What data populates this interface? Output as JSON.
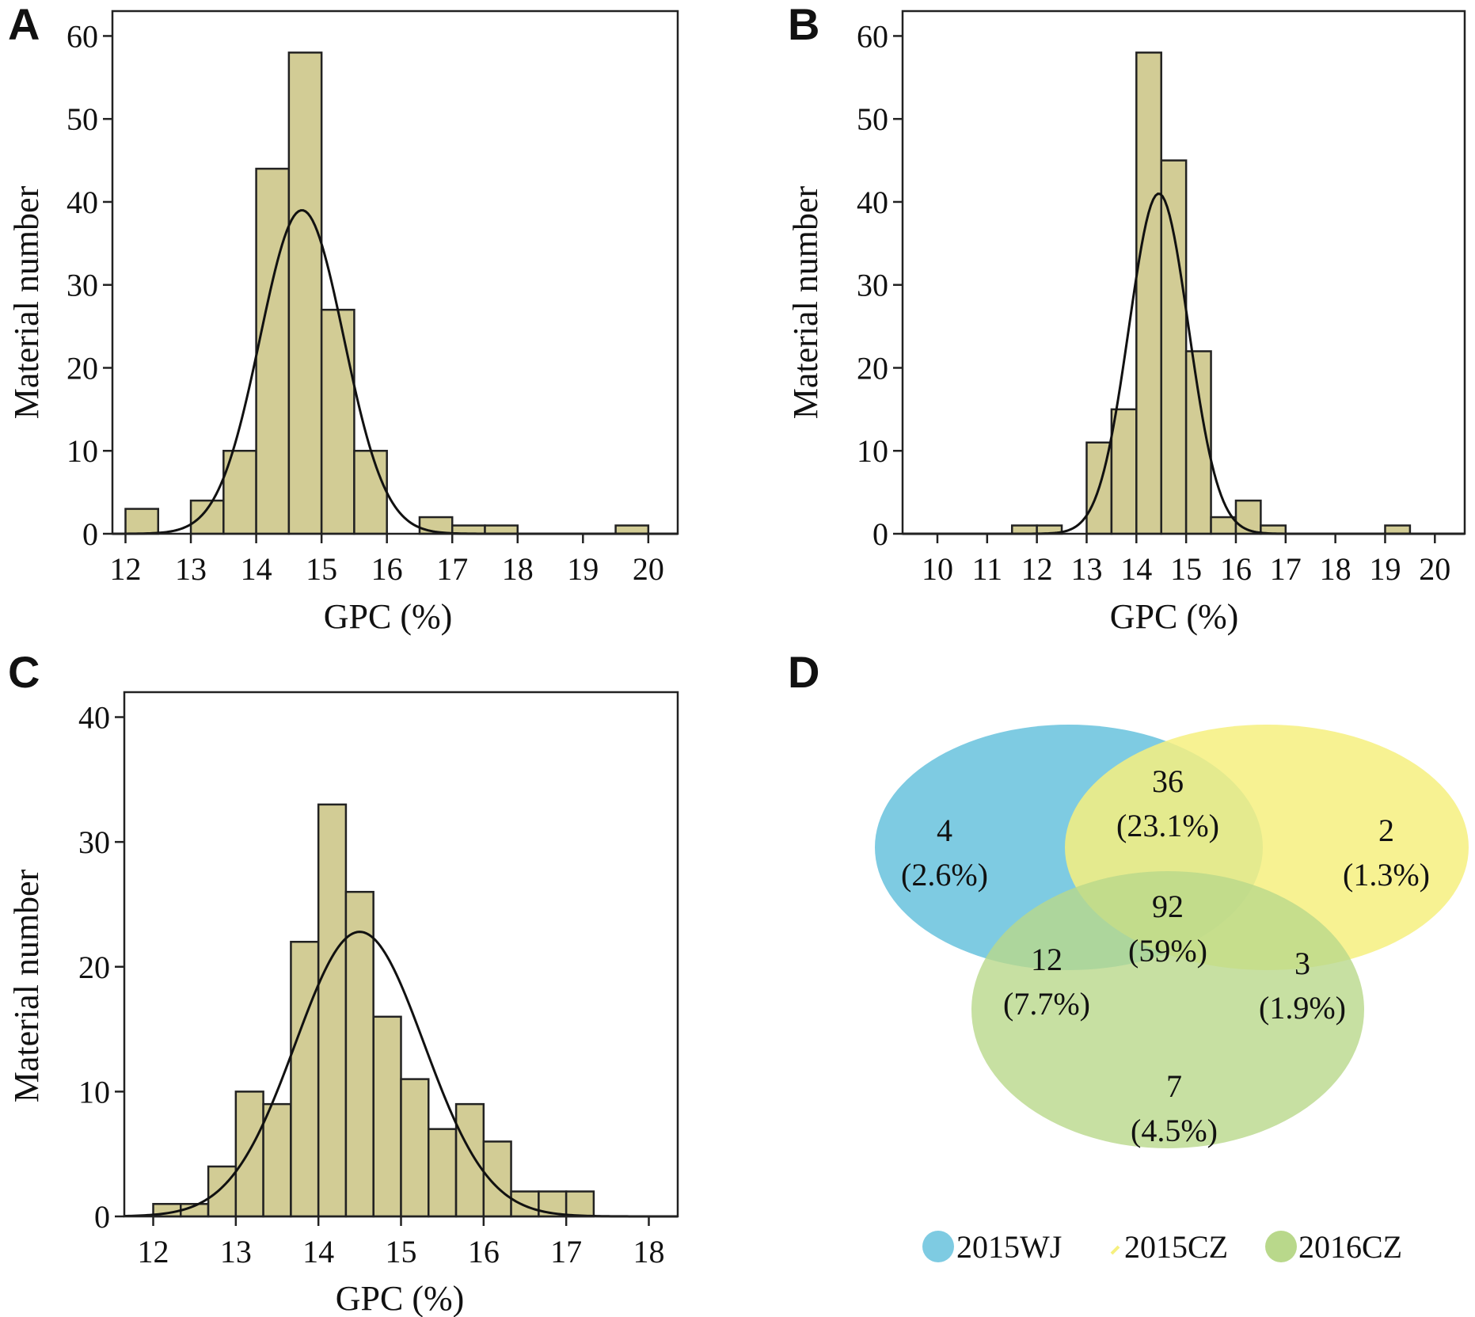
{
  "colors": {
    "bar_fill": "#d2cc95",
    "venn_2015WJ": "#7ecbe2",
    "venn_2015CZ": "#f6f07f",
    "venn_2016CZ": "#b9d88b"
  },
  "chart_data": [
    {
      "type": "bar",
      "panel": "A",
      "xlabel": "GPC (%)",
      "ylabel": "Material number",
      "xlim": [
        11.8,
        20.45
      ],
      "ylim": [
        0,
        63
      ],
      "xticks": [
        12,
        13,
        14,
        15,
        16,
        17,
        18,
        19,
        20
      ],
      "yticks": [
        0,
        10,
        20,
        30,
        40,
        50,
        60
      ],
      "bin_width": 0.5,
      "bins": [
        {
          "x0": 12.0,
          "count": 3
        },
        {
          "x0": 13.0,
          "count": 4
        },
        {
          "x0": 13.5,
          "count": 10
        },
        {
          "x0": 14.0,
          "count": 44
        },
        {
          "x0": 14.5,
          "count": 58
        },
        {
          "x0": 15.0,
          "count": 27
        },
        {
          "x0": 15.5,
          "count": 10
        },
        {
          "x0": 16.5,
          "count": 2
        },
        {
          "x0": 17.0,
          "count": 1
        },
        {
          "x0": 17.5,
          "count": 1
        },
        {
          "x0": 19.5,
          "count": 1
        }
      ],
      "normal_curve": {
        "mean": 14.7,
        "peak": 39,
        "sd": 0.64
      }
    },
    {
      "type": "bar",
      "panel": "B",
      "xlabel": "GPC (%)",
      "ylabel": "Material number",
      "xlim": [
        9.3,
        20.6
      ],
      "ylim": [
        0,
        63
      ],
      "xticks": [
        10,
        11,
        12,
        13,
        14,
        15,
        16,
        17,
        18,
        19,
        20
      ],
      "yticks": [
        0,
        10,
        20,
        30,
        40,
        50,
        60
      ],
      "bin_width": 0.5,
      "bins": [
        {
          "x0": 11.5,
          "count": 1
        },
        {
          "x0": 12.0,
          "count": 1
        },
        {
          "x0": 13.0,
          "count": 11
        },
        {
          "x0": 13.5,
          "count": 15
        },
        {
          "x0": 14.0,
          "count": 58
        },
        {
          "x0": 14.5,
          "count": 45
        },
        {
          "x0": 15.0,
          "count": 22
        },
        {
          "x0": 15.5,
          "count": 2
        },
        {
          "x0": 16.0,
          "count": 4
        },
        {
          "x0": 16.5,
          "count": 1
        },
        {
          "x0": 19.0,
          "count": 1
        }
      ],
      "normal_curve": {
        "mean": 14.45,
        "peak": 41,
        "sd": 0.6
      }
    },
    {
      "type": "bar",
      "panel": "C",
      "xlabel": "GPC (%)",
      "ylabel": "Material number",
      "xlim": [
        11.65,
        18.35
      ],
      "ylim": [
        0,
        42
      ],
      "xticks": [
        12,
        13,
        14,
        15,
        16,
        17,
        18
      ],
      "yticks": [
        0,
        10,
        20,
        30,
        40
      ],
      "bin_width": 0.333,
      "bins": [
        {
          "x0": 12.0,
          "count": 1
        },
        {
          "x0": 12.333,
          "count": 1
        },
        {
          "x0": 12.667,
          "count": 4
        },
        {
          "x0": 13.0,
          "count": 10
        },
        {
          "x0": 13.333,
          "count": 9
        },
        {
          "x0": 13.667,
          "count": 22
        },
        {
          "x0": 14.0,
          "count": 33
        },
        {
          "x0": 14.333,
          "count": 26
        },
        {
          "x0": 14.667,
          "count": 16
        },
        {
          "x0": 15.0,
          "count": 11
        },
        {
          "x0": 15.333,
          "count": 7
        },
        {
          "x0": 15.667,
          "count": 9
        },
        {
          "x0": 16.0,
          "count": 6
        },
        {
          "x0": 16.333,
          "count": 2
        },
        {
          "x0": 16.667,
          "count": 2
        },
        {
          "x0": 17.0,
          "count": 2
        }
      ],
      "normal_curve": {
        "mean": 14.5,
        "peak": 22.8,
        "sd": 0.78
      }
    }
  ],
  "panels": {
    "a": {
      "letter": "A",
      "xlabel": "GPC (%)",
      "ylabel": "Material number"
    },
    "b": {
      "letter": "B",
      "xlabel": "GPC (%)",
      "ylabel": "Material number"
    },
    "c": {
      "letter": "C",
      "xlabel": "GPC (%)",
      "ylabel": "Material number"
    },
    "d": {
      "letter": "D"
    }
  },
  "venn": {
    "wj_only": {
      "count": "4",
      "pct": "(2.6%)"
    },
    "wj_cz15": {
      "count": "36",
      "pct": "(23.1%)"
    },
    "cz15_only": {
      "count": "2",
      "pct": "(1.3%)"
    },
    "all_three": {
      "count": "92",
      "pct": "(59%)"
    },
    "wj_cz16": {
      "count": "12",
      "pct": "(7.7%)"
    },
    "cz15_cz16": {
      "count": "3",
      "pct": "(1.9%)"
    },
    "cz16_only": {
      "count": "7",
      "pct": "(4.5%)"
    },
    "legend": [
      "2015WJ",
      "2015CZ",
      "2016CZ"
    ]
  }
}
